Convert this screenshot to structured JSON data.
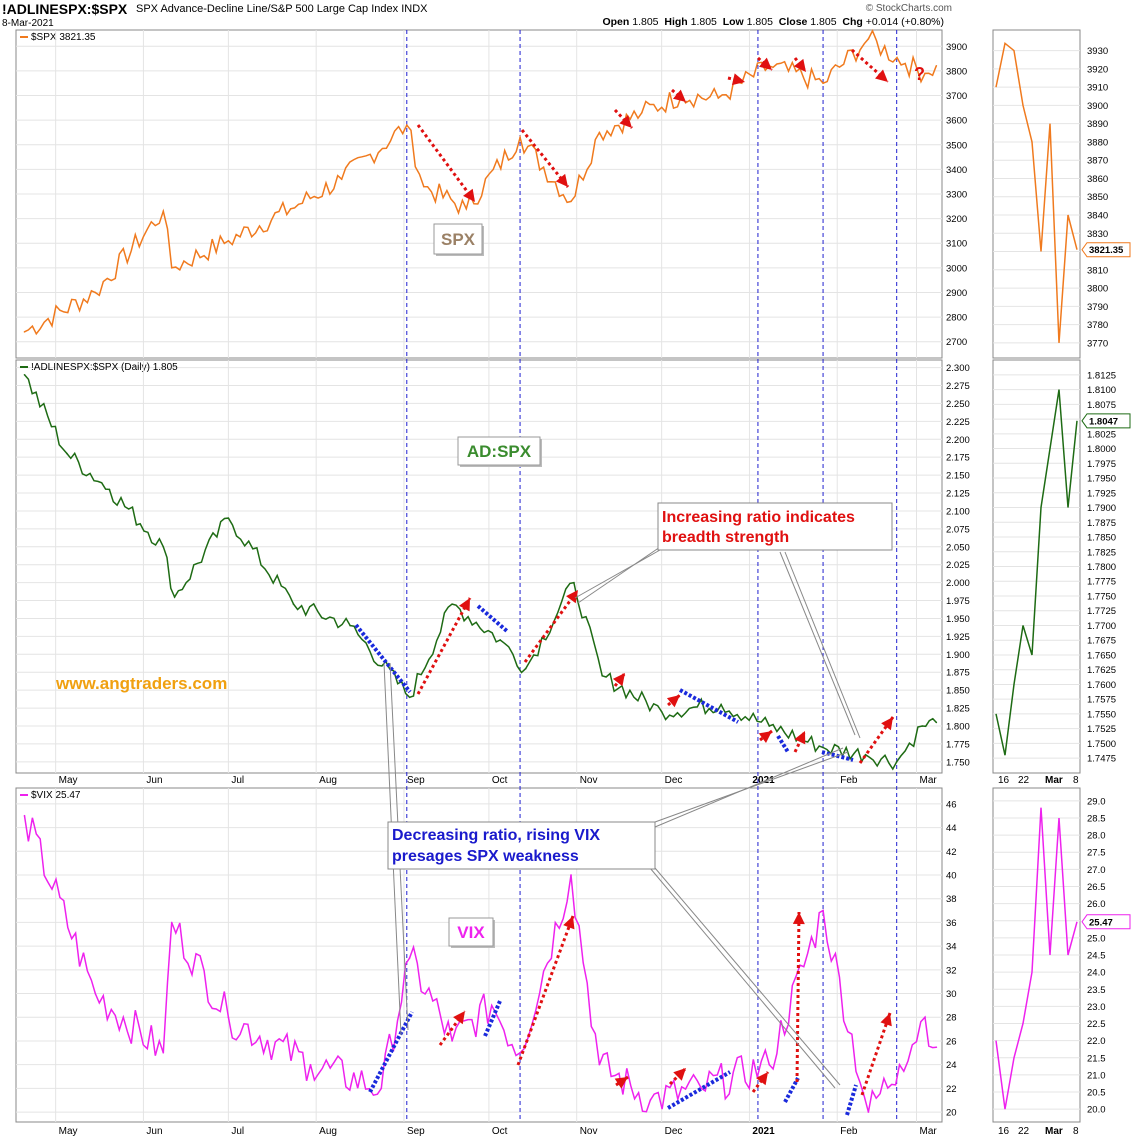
{
  "header": {
    "symbol": "!ADLINESPX:$SPX",
    "description": "SPX Advance-Decline Line/S&P 500 Large Cap Index",
    "exchange": "INDX",
    "date": "8-Mar-2021",
    "brand": "© StockCharts.com",
    "open_label": "Open",
    "open": "1.805",
    "high_label": "High",
    "high": "1.805",
    "low_label": "Low",
    "low": "1.805",
    "close_label": "Close",
    "close": "1.805",
    "chg_label": "Chg",
    "chg": "+0.014 (+0.80%)"
  },
  "colors": {
    "spx": "#f07a1e",
    "ad": "#1e6b14",
    "vix": "#ee22ee",
    "red_arrow": "#e01010",
    "blue_dots": "#1a2adc",
    "vline": "#2020d0",
    "grid": "#e4e4e4"
  },
  "annotations": {
    "spx_box": "SPX",
    "ad_box": "AD:SPX",
    "vix_box": "VIX",
    "callout_red_line1": "Increasing ratio indicates",
    "callout_red_line2": "breadth strength",
    "callout_blue_line1": "Decreasing ratio, rising VIX",
    "callout_blue_line2": "presages SPX weakness",
    "website": "www.angtraders.com",
    "question_mark": "?"
  },
  "chart_data": [
    {
      "type": "line",
      "panel": "SPX",
      "series": [
        {
          "name": "$SPX 3821.35",
          "x": [
            "2020-04-20",
            "2020-05-15",
            "2020-06-08",
            "2020-06-11",
            "2020-07-01",
            "2020-07-23",
            "2020-08-10",
            "2020-09-02",
            "2020-09-08",
            "2020-09-23",
            "2020-10-12",
            "2020-10-30",
            "2020-11-09",
            "2020-11-24",
            "2020-12-08",
            "2020-12-21",
            "2021-01-08",
            "2021-01-27",
            "2021-02-12",
            "2021-02-25",
            "2021-03-04",
            "2021-03-08"
          ],
          "values": [
            2740,
            2900,
            3230,
            3000,
            3110,
            3240,
            3360,
            3580,
            3330,
            3240,
            3530,
            3270,
            3550,
            3630,
            3700,
            3690,
            3820,
            3750,
            3930,
            3830,
            3790,
            3821
          ]
        }
      ],
      "ylim": [
        2650,
        3950
      ],
      "yticks": [
        2700,
        2800,
        2900,
        3000,
        3100,
        3200,
        3300,
        3400,
        3500,
        3600,
        3700,
        3800,
        3900
      ]
    },
    {
      "type": "line",
      "panel": "AD:SPX",
      "series": [
        {
          "name": "!ADLINESPX:$SPX (Daily) 1.805",
          "x": [
            "2020-04-20",
            "2020-05-05",
            "2020-05-20",
            "2020-06-08",
            "2020-06-12",
            "2020-07-01",
            "2020-07-24",
            "2020-08-13",
            "2020-09-03",
            "2020-09-18",
            "2020-10-05",
            "2020-10-14",
            "2020-10-31",
            "2020-11-10",
            "2020-12-01",
            "2020-12-22",
            "2021-01-08",
            "2021-01-27",
            "2021-02-11",
            "2021-02-22",
            "2021-03-03",
            "2021-03-08"
          ],
          "values": [
            2.29,
            2.18,
            2.13,
            2.05,
            1.98,
            2.09,
            1.97,
            1.94,
            1.84,
            1.97,
            1.92,
            1.88,
            2.0,
            1.87,
            1.82,
            1.83,
            1.8,
            1.77,
            1.76,
            1.75,
            1.8,
            1.805
          ]
        }
      ],
      "ylim": [
        1.74,
        2.305
      ],
      "yticks": [
        1.75,
        1.775,
        1.8,
        1.825,
        1.85,
        1.875,
        1.9,
        1.925,
        1.95,
        1.975,
        2.0,
        2.025,
        2.05,
        2.075,
        2.1,
        2.125,
        2.15,
        2.175,
        2.2,
        2.225,
        2.25,
        2.275,
        2.3
      ]
    },
    {
      "type": "line",
      "panel": "VIX",
      "series": [
        {
          "name": "$VIX 25.47",
          "x": [
            "2020-04-20",
            "2020-05-15",
            "2020-06-08",
            "2020-06-11",
            "2020-07-01",
            "2020-07-30",
            "2020-08-24",
            "2020-09-03",
            "2020-09-18",
            "2020-10-02",
            "2020-10-12",
            "2020-10-30",
            "2020-11-09",
            "2020-11-27",
            "2020-12-15",
            "2021-01-08",
            "2021-01-27",
            "2021-02-12",
            "2021-02-23",
            "2021-03-04",
            "2021-03-08"
          ],
          "values": [
            45,
            30,
            25,
            36,
            28,
            24,
            22,
            33,
            26,
            29,
            25,
            40,
            24,
            21,
            22,
            24,
            37,
            20,
            24,
            28,
            25.47
          ]
        }
      ],
      "ylim": [
        19.5,
        47
      ],
      "yticks": [
        20,
        22,
        24,
        26,
        28,
        30,
        32,
        34,
        36,
        38,
        40,
        42,
        44,
        46
      ]
    },
    {
      "type": "line",
      "panel": "inset-SPX",
      "series": [
        {
          "name": "$SPX",
          "values": [
            3910,
            3934,
            3930,
            3900,
            3880,
            3820,
            3890,
            3770,
            3840,
            3821
          ]
        }
      ],
      "ylim": [
        3765,
        3938
      ],
      "yticks": [
        3770,
        3780,
        3790,
        3800,
        3810,
        3820,
        3830,
        3840,
        3850,
        3860,
        3870,
        3880,
        3890,
        3900,
        3910,
        3920,
        3930
      ]
    },
    {
      "type": "line",
      "panel": "inset-AD",
      "series": [
        {
          "name": "!ADLINESPX:$SPX",
          "values": [
            1.755,
            1.748,
            1.76,
            1.77,
            1.765,
            1.79,
            1.8,
            1.81,
            1.79,
            1.8047
          ]
        }
      ],
      "ylim": [
        1.746,
        1.814
      ],
      "yticks": [
        1.7475,
        1.75,
        1.7525,
        1.755,
        1.7575,
        1.76,
        1.7625,
        1.765,
        1.7675,
        1.77,
        1.7725,
        1.775,
        1.7775,
        1.78,
        1.7825,
        1.785,
        1.7875,
        1.79,
        1.7925,
        1.795,
        1.7975,
        1.8,
        1.8025,
        1.805,
        1.8075,
        1.81,
        1.8125
      ]
    },
    {
      "type": "line",
      "panel": "inset-VIX",
      "series": [
        {
          "name": "$VIX",
          "values": [
            22,
            20,
            21.5,
            22.5,
            24,
            28.8,
            24.5,
            28.5,
            24.5,
            25.47
          ]
        }
      ],
      "ylim": [
        19.8,
        29.2
      ],
      "yticks": [
        20.0,
        20.5,
        21.0,
        21.5,
        22.0,
        22.5,
        23.0,
        23.5,
        24.0,
        24.5,
        25.0,
        25.5,
        26.0,
        26.5,
        27.0,
        27.5,
        28.0,
        28.5,
        29.0
      ]
    }
  ],
  "x_axis": {
    "labels": [
      "May",
      "Jun",
      "Jul",
      "Aug",
      "Sep",
      "Oct",
      "Nov",
      "Dec",
      "2021",
      "Feb",
      "Mar"
    ]
  },
  "inset_x_axis": {
    "labels": [
      "16",
      "22",
      "Mar",
      "8"
    ]
  },
  "last_value_labels": {
    "spx": "3821.35",
    "ad": "1.8047",
    "vix": "25.47"
  }
}
